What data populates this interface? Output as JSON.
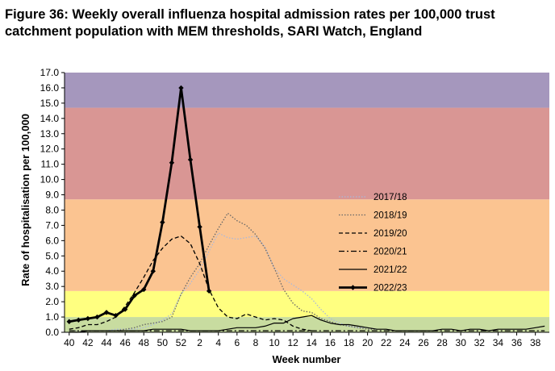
{
  "figure_title": "Figure 36: Weekly overall influenza hospital admission rates per 100,000 trust catchment population with MEM thresholds, SARI Watch, England",
  "chart_data": {
    "type": "line",
    "title": "Figure 36: Weekly overall influenza hospital admission rates per 100,000 trust catchment population with MEM thresholds, SARI Watch, England",
    "xlabel": "Week number",
    "ylabel": "Rate of hospitalisation per 100,000",
    "ylim": [
      0,
      17
    ],
    "y_ticks": [
      "0.0",
      "1.0",
      "2.0",
      "3.0",
      "4.0",
      "5.0",
      "6.0",
      "7.0",
      "8.0",
      "9.0",
      "10.0",
      "11.0",
      "12.0",
      "13.0",
      "14.0",
      "15.0",
      "16.0",
      "17.0"
    ],
    "x_tick_labels": [
      "40",
      "42",
      "44",
      "46",
      "48",
      "50",
      "52",
      "2",
      "4",
      "6",
      "8",
      "10",
      "12",
      "14",
      "16",
      "18",
      "20",
      "22",
      "24",
      "26",
      "28",
      "30",
      "32",
      "34",
      "36",
      "38"
    ],
    "x": [
      "40",
      "41",
      "42",
      "43",
      "44",
      "45",
      "46",
      "47",
      "48",
      "49",
      "50",
      "51",
      "52",
      "1",
      "2",
      "3",
      "4",
      "5",
      "6",
      "7",
      "8",
      "9",
      "10",
      "11",
      "12",
      "13",
      "14",
      "15",
      "16",
      "17",
      "18",
      "19",
      "20",
      "21",
      "22",
      "23",
      "24",
      "25",
      "26",
      "27",
      "28",
      "29",
      "30",
      "31",
      "32",
      "33",
      "34",
      "35",
      "36",
      "37",
      "38",
      "39"
    ],
    "thresholds": [
      {
        "from": 0,
        "to": 1.0,
        "color": "#c8dca0"
      },
      {
        "from": 1.0,
        "to": 2.7,
        "color": "#ffff80"
      },
      {
        "from": 2.7,
        "to": 8.7,
        "color": "#fbc491"
      },
      {
        "from": 8.7,
        "to": 14.7,
        "color": "#d99694"
      },
      {
        "from": 14.7,
        "to": 17,
        "color": "#a597bd"
      }
    ],
    "legend_position": "right",
    "grid": false,
    "series": [
      {
        "name": "2017/18",
        "style": "dotted-light",
        "color": "#a9b8dc",
        "values": [
          0.1,
          0.1,
          0.1,
          0.1,
          0.1,
          0.2,
          0.2,
          0.2,
          0.3,
          0.5,
          0.8,
          1.2,
          2.5,
          3.2,
          4.1,
          5.3,
          6.5,
          6.2,
          6.1,
          6.2,
          6.3,
          5.6,
          4.2,
          3.5,
          3.1,
          2.7,
          2.2,
          1.5,
          0.9,
          0.6,
          0.4,
          0.3,
          0.3,
          0.2,
          null,
          null,
          null,
          null,
          null,
          null,
          null,
          null,
          null,
          null,
          null,
          null,
          null,
          null,
          null,
          null,
          null,
          null
        ]
      },
      {
        "name": "2018/19",
        "style": "dotted",
        "color": "#666666",
        "values": [
          0.1,
          0.1,
          0.1,
          0.1,
          0.1,
          0.1,
          0.2,
          0.3,
          0.5,
          0.6,
          0.7,
          1.0,
          2.5,
          3.6,
          4.5,
          5.7,
          6.8,
          7.8,
          7.3,
          7.0,
          6.4,
          5.5,
          4.2,
          2.8,
          1.9,
          1.4,
          1.3,
          0.9,
          0.7,
          0.5,
          0.4,
          0.3,
          0.2,
          0.2,
          null,
          null,
          null,
          null,
          null,
          null,
          null,
          null,
          null,
          null,
          null,
          null,
          null,
          null,
          null,
          null,
          null,
          null
        ]
      },
      {
        "name": "2019/20",
        "style": "dashed",
        "color": "#000000",
        "values": [
          0.2,
          0.3,
          0.5,
          0.5,
          0.7,
          1.0,
          1.7,
          2.6,
          3.6,
          4.7,
          5.5,
          6.1,
          6.3,
          5.8,
          4.5,
          2.8,
          1.6,
          1.0,
          0.9,
          1.2,
          1.0,
          0.8,
          0.9,
          0.8,
          0.4,
          0.2,
          0.1,
          null,
          null,
          null,
          null,
          null,
          null,
          null,
          null,
          null,
          null,
          null,
          null,
          null,
          null,
          null,
          null,
          null,
          null,
          null,
          null,
          null,
          null,
          null,
          null,
          null
        ]
      },
      {
        "name": "2020/21",
        "style": "dashdot",
        "color": "#000000",
        "values": [
          0.1,
          0.1,
          0.1,
          0.1,
          0.1,
          0.1,
          0.1,
          0.1,
          0.1,
          0.1,
          0.1,
          0.1,
          0.1,
          0.1,
          0.1,
          0.1,
          0.1,
          0.1,
          0.1,
          0.1,
          0.1,
          0.1,
          0.1,
          0.1,
          0.1,
          0.1,
          0.1,
          0.1,
          0.1,
          0.1,
          0.1,
          0.1,
          0.1,
          0.1,
          0.1,
          0.1,
          0.1,
          0.1,
          0.1,
          0.1,
          0.1,
          0.1,
          0.1,
          0.1,
          0.1,
          0.1,
          0.1,
          0.1,
          0.1,
          0.1,
          0.1,
          0.1
        ]
      },
      {
        "name": "2021/22",
        "style": "solid-thin",
        "color": "#000000",
        "values": [
          0.0,
          0.0,
          0.1,
          0.1,
          0.1,
          0.1,
          0.1,
          0.1,
          0.1,
          0.2,
          0.2,
          0.2,
          0.2,
          0.1,
          0.1,
          0.1,
          0.1,
          0.2,
          0.3,
          0.3,
          0.3,
          0.4,
          0.6,
          0.6,
          0.9,
          1.0,
          1.1,
          0.8,
          0.6,
          0.5,
          0.5,
          0.4,
          0.3,
          0.2,
          0.2,
          0.1,
          0.1,
          0.1,
          0.1,
          0.1,
          0.2,
          0.2,
          0.1,
          0.2,
          0.2,
          0.1,
          0.2,
          0.2,
          0.2,
          0.2,
          0.3,
          0.4
        ]
      },
      {
        "name": "2022/23",
        "style": "solid-bold-marker",
        "color": "#000000",
        "values": [
          0.7,
          0.8,
          0.9,
          1.0,
          1.3,
          1.1,
          1.5,
          2.4,
          2.8,
          4.0,
          7.2,
          11.1,
          16.0,
          11.3,
          6.9,
          2.7,
          null,
          null,
          null,
          null,
          null,
          null,
          null,
          null,
          null,
          null,
          null,
          null,
          null,
          null,
          null,
          null,
          null,
          null,
          null,
          null,
          null,
          null,
          null,
          null,
          null,
          null,
          null,
          null,
          null,
          null,
          null,
          null,
          null,
          null,
          null,
          null
        ]
      }
    ]
  }
}
